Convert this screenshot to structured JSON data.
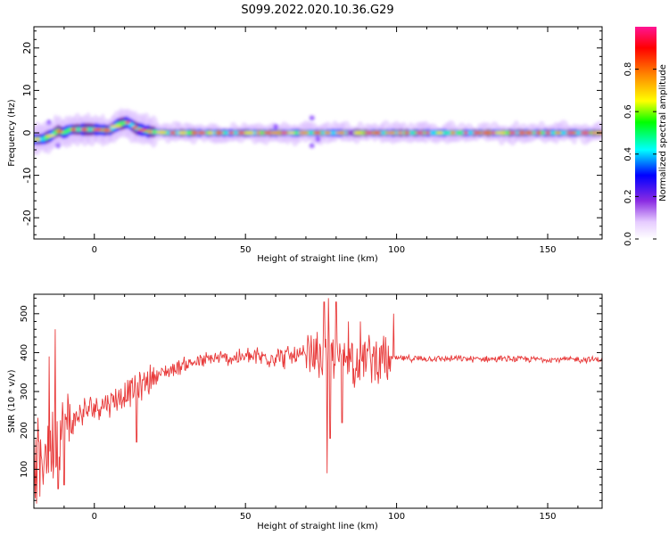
{
  "title": "S099.2022.020.10.36.G29",
  "chart_data": [
    {
      "type": "heatmap",
      "xlabel": "Height of straight line (km)",
      "ylabel": "Frequency (Hz)",
      "xlim": [
        -20,
        168
      ],
      "ylim": [
        -25,
        25
      ],
      "xticks": [
        0,
        50,
        100,
        150
      ],
      "yticks": [
        -20,
        -10,
        0,
        10,
        20
      ],
      "grid": false,
      "colorbar": {
        "label": "Normalized spectral amplitude",
        "range": [
          0,
          1
        ],
        "ticks": [
          "0.0",
          "0.2",
          "0.4",
          "0.6",
          "0.8"
        ],
        "colormap": [
          "#ffffff",
          "#e6ccff",
          "#8a2be2",
          "#0000ff",
          "#00ffff",
          "#00ff00",
          "#ffff00",
          "#ff8000",
          "#ff0000",
          "#ff1493"
        ]
      },
      "ridge": [
        {
          "x": -20,
          "f": -1.5
        },
        {
          "x": -17,
          "f": -1.5
        },
        {
          "x": -14,
          "f": -0.5
        },
        {
          "x": -12,
          "f": 0.5
        },
        {
          "x": -10,
          "f": 0.0
        },
        {
          "x": -8,
          "f": 0.8
        },
        {
          "x": 0,
          "f": 0.8
        },
        {
          "x": 5,
          "f": 0.6
        },
        {
          "x": 8,
          "f": 2.0
        },
        {
          "x": 11,
          "f": 2.5
        },
        {
          "x": 14,
          "f": 1.0
        },
        {
          "x": 18,
          "f": 0.3
        },
        {
          "x": 25,
          "f": 0.0
        },
        {
          "x": 168,
          "f": 0.0
        }
      ]
    },
    {
      "type": "line",
      "xlabel": "Height of straight line (km)",
      "ylabel": "SNR (10 * v/v)",
      "xlim": [
        -20,
        168
      ],
      "ylim": [
        0,
        550
      ],
      "xticks": [
        0,
        50,
        100,
        150
      ],
      "yticks": [
        100,
        200,
        300,
        400,
        500
      ],
      "grid": false,
      "series_color": "#e83a3a",
      "trend": [
        {
          "x": -20,
          "y": 100
        },
        {
          "x": -15,
          "y": 160
        },
        {
          "x": -10,
          "y": 200
        },
        {
          "x": -5,
          "y": 240
        },
        {
          "x": 0,
          "y": 260
        },
        {
          "x": 10,
          "y": 290
        },
        {
          "x": 20,
          "y": 340
        },
        {
          "x": 30,
          "y": 370
        },
        {
          "x": 40,
          "y": 385
        },
        {
          "x": 60,
          "y": 390
        },
        {
          "x": 80,
          "y": 390
        },
        {
          "x": 100,
          "y": 385
        },
        {
          "x": 168,
          "y": 382
        }
      ],
      "spikes": [
        {
          "x": -18,
          "y": 30
        },
        {
          "x": -15,
          "y": 390
        },
        {
          "x": -13,
          "y": 460
        },
        {
          "x": -12,
          "y": 50
        },
        {
          "x": -10,
          "y": 60
        },
        {
          "x": 14,
          "y": 170
        },
        {
          "x": 76,
          "y": 530
        },
        {
          "x": 77,
          "y": 90
        },
        {
          "x": 77.5,
          "y": 540
        },
        {
          "x": 78,
          "y": 180
        },
        {
          "x": 80,
          "y": 530
        },
        {
          "x": 82,
          "y": 220
        },
        {
          "x": 84,
          "y": 480
        },
        {
          "x": 86,
          "y": 310
        },
        {
          "x": 88,
          "y": 480
        },
        {
          "x": 99,
          "y": 500
        },
        {
          "x": 97,
          "y": 330
        }
      ]
    }
  ]
}
